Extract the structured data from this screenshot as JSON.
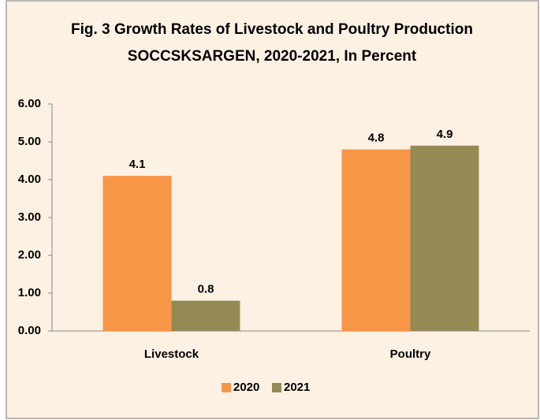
{
  "chart_data": {
    "type": "bar",
    "title": "Fig. 3 Growth Rates of Livestock and Poultry Production",
    "subtitle": "SOCCSKSARGEN, 2020-2021, In Percent",
    "categories": [
      "Livestock",
      "Poultry"
    ],
    "series": [
      {
        "name": "2020",
        "color": "#f79646",
        "values": [
          4.1,
          4.8
        ]
      },
      {
        "name": "2021",
        "color": "#948a54",
        "values": [
          0.8,
          4.9
        ]
      }
    ],
    "ylim": [
      0,
      6
    ],
    "yticks": [
      {
        "value": 0,
        "label": "0.00"
      },
      {
        "value": 1,
        "label": "1.00"
      },
      {
        "value": 2,
        "label": "2.00"
      },
      {
        "value": 3,
        "label": "3.00"
      },
      {
        "value": 4,
        "label": "4.00"
      },
      {
        "value": 5,
        "label": "5.00"
      },
      {
        "value": 6,
        "label": "6.00"
      }
    ],
    "legend": "bottom"
  }
}
